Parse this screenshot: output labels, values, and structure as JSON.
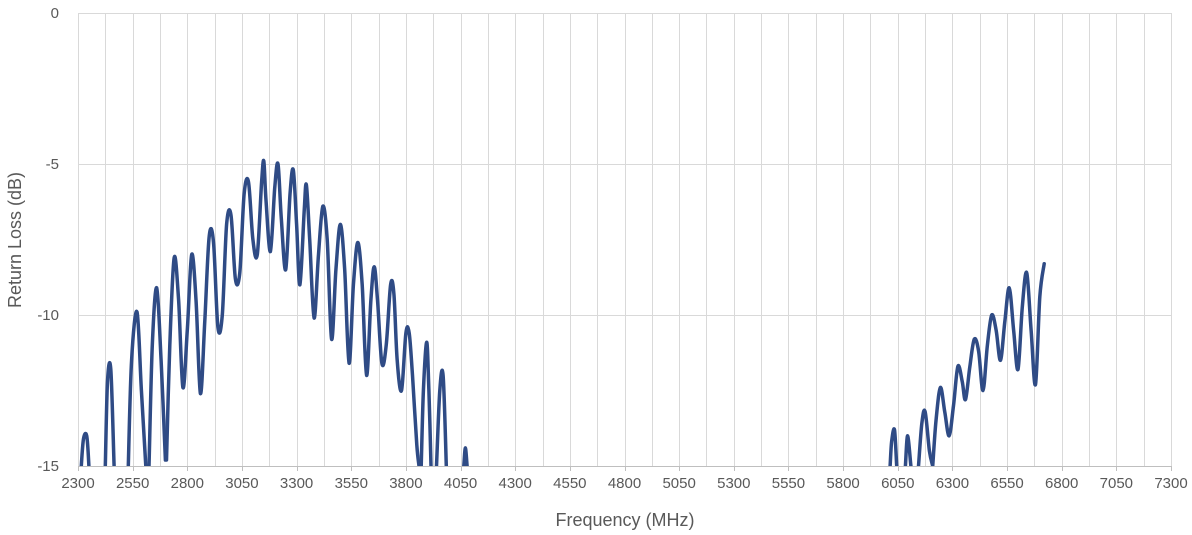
{
  "chart_data": {
    "type": "line",
    "title": "",
    "xlabel": "Frequency (MHz)",
    "ylabel": "Return Loss (dB)",
    "xlim": [
      2300,
      7300
    ],
    "ylim": [
      -15,
      0
    ],
    "x_ticks": [
      2300,
      2550,
      2800,
      3050,
      3300,
      3550,
      3800,
      4050,
      4300,
      4550,
      4800,
      5050,
      5300,
      5550,
      5800,
      6050,
      6300,
      6550,
      6800,
      7050,
      7300
    ],
    "x_tick_labels": [
      "2300",
      "2550",
      "2800",
      "3050",
      "3300",
      "3550",
      "3800",
      "4050",
      "4300",
      "4550",
      "4800",
      "5050",
      "5300",
      "5550",
      "5800",
      "6050",
      "6300",
      "6550",
      "6800",
      "7050",
      "7300"
    ],
    "x_minor_grid_step": 125,
    "y_ticks": [
      0,
      -5,
      -10,
      -15
    ],
    "y_tick_labels": [
      "0",
      "-5",
      "-10",
      "-15"
    ],
    "grid": true,
    "legend": "none",
    "line_color": "#2f4b85",
    "series": [
      {
        "segments": [
          [
            [
              2315,
              -15
            ],
            [
              2325,
              -14.1
            ],
            [
              2340,
              -14.0
            ],
            [
              2350,
              -15
            ]
          ],
          [
            [
              2425,
              -15
            ],
            [
              2435,
              -12.2
            ],
            [
              2450,
              -11.8
            ],
            [
              2465,
              -15
            ]
          ],
          [
            [
              2530,
              -15
            ],
            [
              2545,
              -11.5
            ],
            [
              2570,
              -9.9
            ],
            [
              2590,
              -12.5
            ],
            [
              2610,
              -15
            ]
          ],
          [
            [
              2625,
              -15
            ],
            [
              2640,
              -11.0
            ],
            [
              2660,
              -9.1
            ],
            [
              2680,
              -11.5
            ],
            [
              2700,
              -14.8
            ]
          ],
          [
            [
              2705,
              -14.8
            ],
            [
              2720,
              -11.0
            ],
            [
              2740,
              -8.1
            ],
            [
              2760,
              -9.5
            ],
            [
              2780,
              -12.4
            ],
            [
              2800,
              -10.5
            ],
            [
              2820,
              -8.0
            ],
            [
              2840,
              -9.5
            ],
            [
              2860,
              -12.6
            ],
            [
              2880,
              -10.2
            ],
            [
              2900,
              -7.4
            ],
            [
              2920,
              -7.6
            ],
            [
              2940,
              -10.4
            ],
            [
              2960,
              -10.0
            ],
            [
              2980,
              -7.0
            ],
            [
              3000,
              -6.7
            ],
            [
              3020,
              -8.8
            ],
            [
              3040,
              -8.6
            ],
            [
              3060,
              -6.0
            ],
            [
              3080,
              -5.6
            ],
            [
              3100,
              -7.5
            ],
            [
              3120,
              -8.0
            ],
            [
              3140,
              -5.6
            ],
            [
              3150,
              -4.9
            ],
            [
              3160,
              -6.2
            ],
            [
              3180,
              -7.9
            ],
            [
              3200,
              -5.8
            ],
            [
              3215,
              -5.0
            ],
            [
              3230,
              -6.8
            ],
            [
              3250,
              -8.5
            ],
            [
              3270,
              -6.0
            ],
            [
              3285,
              -5.2
            ],
            [
              3300,
              -7.0
            ],
            [
              3315,
              -9.0
            ],
            [
              3335,
              -6.5
            ],
            [
              3345,
              -5.7
            ],
            [
              3360,
              -7.5
            ],
            [
              3380,
              -10.1
            ],
            [
              3400,
              -8.0
            ],
            [
              3420,
              -6.4
            ],
            [
              3440,
              -7.5
            ],
            [
              3460,
              -10.8
            ],
            [
              3480,
              -8.5
            ],
            [
              3500,
              -7.0
            ],
            [
              3520,
              -8.5
            ],
            [
              3540,
              -11.6
            ],
            [
              3560,
              -9.0
            ],
            [
              3580,
              -7.6
            ],
            [
              3600,
              -9.0
            ],
            [
              3620,
              -12.0
            ],
            [
              3640,
              -9.5
            ],
            [
              3655,
              -8.4
            ],
            [
              3670,
              -9.5
            ],
            [
              3690,
              -11.6
            ],
            [
              3710,
              -11.0
            ],
            [
              3730,
              -9.0
            ],
            [
              3745,
              -9.3
            ],
            [
              3760,
              -11.5
            ],
            [
              3780,
              -12.5
            ],
            [
              3800,
              -10.6
            ],
            [
              3815,
              -10.6
            ],
            [
              3830,
              -12.0
            ],
            [
              3850,
              -14.3
            ],
            [
              3860,
              -15
            ]
          ],
          [
            [
              3870,
              -15
            ],
            [
              3880,
              -12.5
            ],
            [
              3895,
              -10.9
            ],
            [
              3905,
              -12.5
            ],
            [
              3915,
              -15
            ]
          ],
          [
            [
              3940,
              -15
            ],
            [
              3955,
              -12.5
            ],
            [
              3970,
              -12.0
            ],
            [
              3985,
              -15
            ]
          ],
          [
            [
              4065,
              -15
            ],
            [
              4072,
              -14.4
            ],
            [
              4080,
              -15
            ]
          ]
        ]
      },
      {
        "segments": [
          [
            [
              6015,
              -15
            ],
            [
              6022,
              -14.2
            ],
            [
              6035,
              -13.8
            ],
            [
              6045,
              -15
            ]
          ],
          [
            [
              6085,
              -15
            ],
            [
              6095,
              -14.0
            ],
            [
              6110,
              -15
            ]
          ],
          [
            [
              6145,
              -15
            ],
            [
              6160,
              -13.6
            ],
            [
              6175,
              -13.2
            ],
            [
              6195,
              -14.5
            ],
            [
              6210,
              -15
            ]
          ],
          [
            [
              6210,
              -15
            ],
            [
              6225,
              -13.5
            ],
            [
              6245,
              -12.4
            ],
            [
              6265,
              -13.2
            ],
            [
              6285,
              -14.0
            ],
            [
              6305,
              -13.0
            ],
            [
              6325,
              -11.7
            ],
            [
              6345,
              -12.2
            ],
            [
              6360,
              -12.8
            ],
            [
              6380,
              -11.7
            ],
            [
              6400,
              -10.8
            ],
            [
              6420,
              -11.2
            ],
            [
              6440,
              -12.5
            ],
            [
              6460,
              -11.0
            ],
            [
              6480,
              -10.0
            ],
            [
              6500,
              -10.5
            ],
            [
              6520,
              -11.5
            ],
            [
              6540,
              -10.2
            ],
            [
              6560,
              -9.1
            ],
            [
              6580,
              -10.5
            ],
            [
              6600,
              -11.8
            ],
            [
              6620,
              -9.7
            ],
            [
              6640,
              -8.6
            ],
            [
              6660,
              -10.5
            ],
            [
              6680,
              -12.3
            ],
            [
              6700,
              -9.4
            ],
            [
              6720,
              -8.3
            ]
          ]
        ]
      }
    ]
  }
}
